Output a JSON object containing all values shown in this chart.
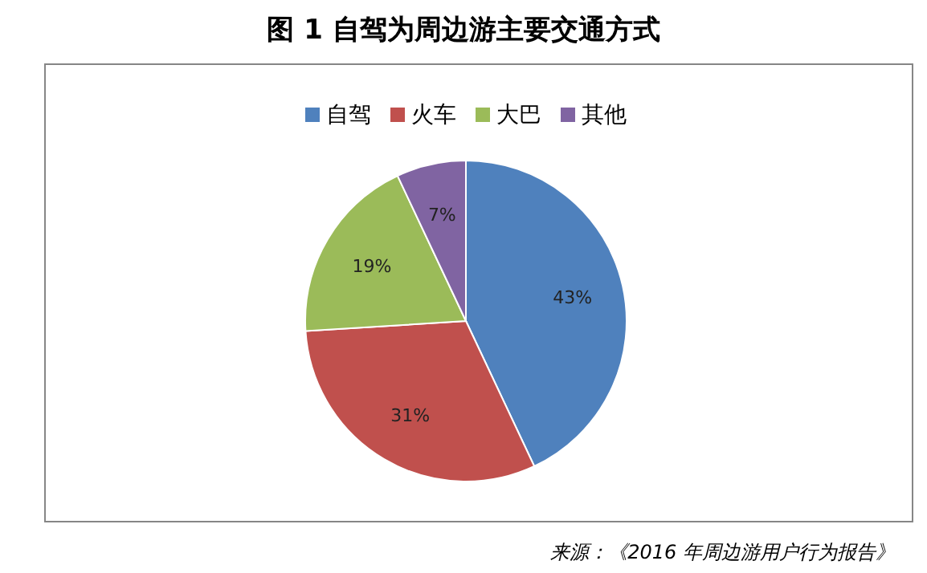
{
  "chart_data": {
    "type": "pie",
    "title": "图 1  自驾为周边游主要交通方式",
    "categories": [
      "自驾",
      "火车",
      "大巴",
      "其他"
    ],
    "values": [
      43,
      31,
      19,
      7
    ],
    "colors": [
      "#4f81bd",
      "#c0504d",
      "#9bbb59",
      "#8064a2"
    ],
    "value_labels": [
      "43%",
      "31%",
      "19%",
      "7%"
    ],
    "legend": "top",
    "annotations": [
      "来源：《2016 年周边游用户行为报告》"
    ]
  }
}
